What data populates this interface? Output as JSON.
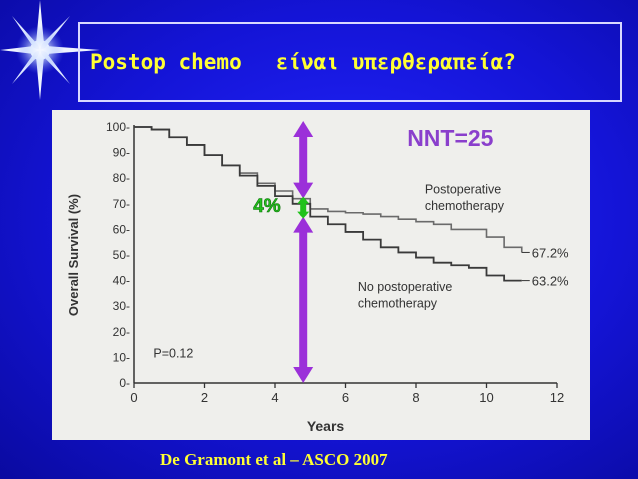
{
  "slide": {
    "title_left": "Postop chemo",
    "title_right": "είναι υπερθεραπεία?",
    "citation": "De Gramont et al – ASCO 2007"
  },
  "colors": {
    "background": "#1414d6",
    "title_text": "#ffff33",
    "arrow": "#9b30d9",
    "highlight": "#21c21b",
    "nnt_text": "#8a3fcc",
    "curve": "#555555"
  },
  "chart_data": {
    "type": "line",
    "xlabel": "Years",
    "ylabel": "Overall Survival (%)",
    "xlim": [
      0,
      12
    ],
    "ylim": [
      0,
      100
    ],
    "x_ticks": [
      "0",
      "2",
      "4",
      "6",
      "8",
      "10",
      "12"
    ],
    "y_ticks": [
      "0-",
      "10-",
      "20-",
      "30-",
      "40-",
      "50-",
      "60-",
      "70-",
      "80-",
      "90-",
      "100-"
    ],
    "series": [
      {
        "name": "Postoperative chemotherapy",
        "end_label": "67.2%",
        "x": [
          0,
          0.5,
          1,
          1.5,
          2,
          2.5,
          3,
          3.5,
          4,
          4.5,
          5,
          5.5,
          6,
          6.5,
          7,
          7.5,
          8,
          8.5,
          9,
          9.5,
          10,
          10.5,
          11
        ],
        "y": [
          100,
          99,
          96,
          93,
          89,
          85,
          82,
          78,
          75,
          72,
          68,
          67,
          66.5,
          66,
          65,
          64,
          63,
          62,
          60,
          60,
          57,
          53,
          51
        ]
      },
      {
        "name": "No postoperative chemotherapy",
        "end_label": "63.2%",
        "x": [
          0,
          0.5,
          1,
          1.5,
          2,
          2.5,
          3,
          3.5,
          4,
          4.5,
          5,
          5.5,
          6,
          6.5,
          7,
          7.5,
          8,
          8.5,
          9,
          9.5,
          10,
          10.5,
          11
        ],
        "y": [
          100,
          99,
          96,
          93,
          89,
          85,
          81,
          77,
          73,
          70,
          65,
          62,
          59,
          56,
          53,
          51,
          49,
          47,
          46,
          45,
          42,
          40,
          40
        ]
      }
    ],
    "annotations": {
      "nnt": "NNT=25",
      "difference": "4%",
      "p_value": "P=0.12",
      "arrow_x": 4.8
    }
  }
}
